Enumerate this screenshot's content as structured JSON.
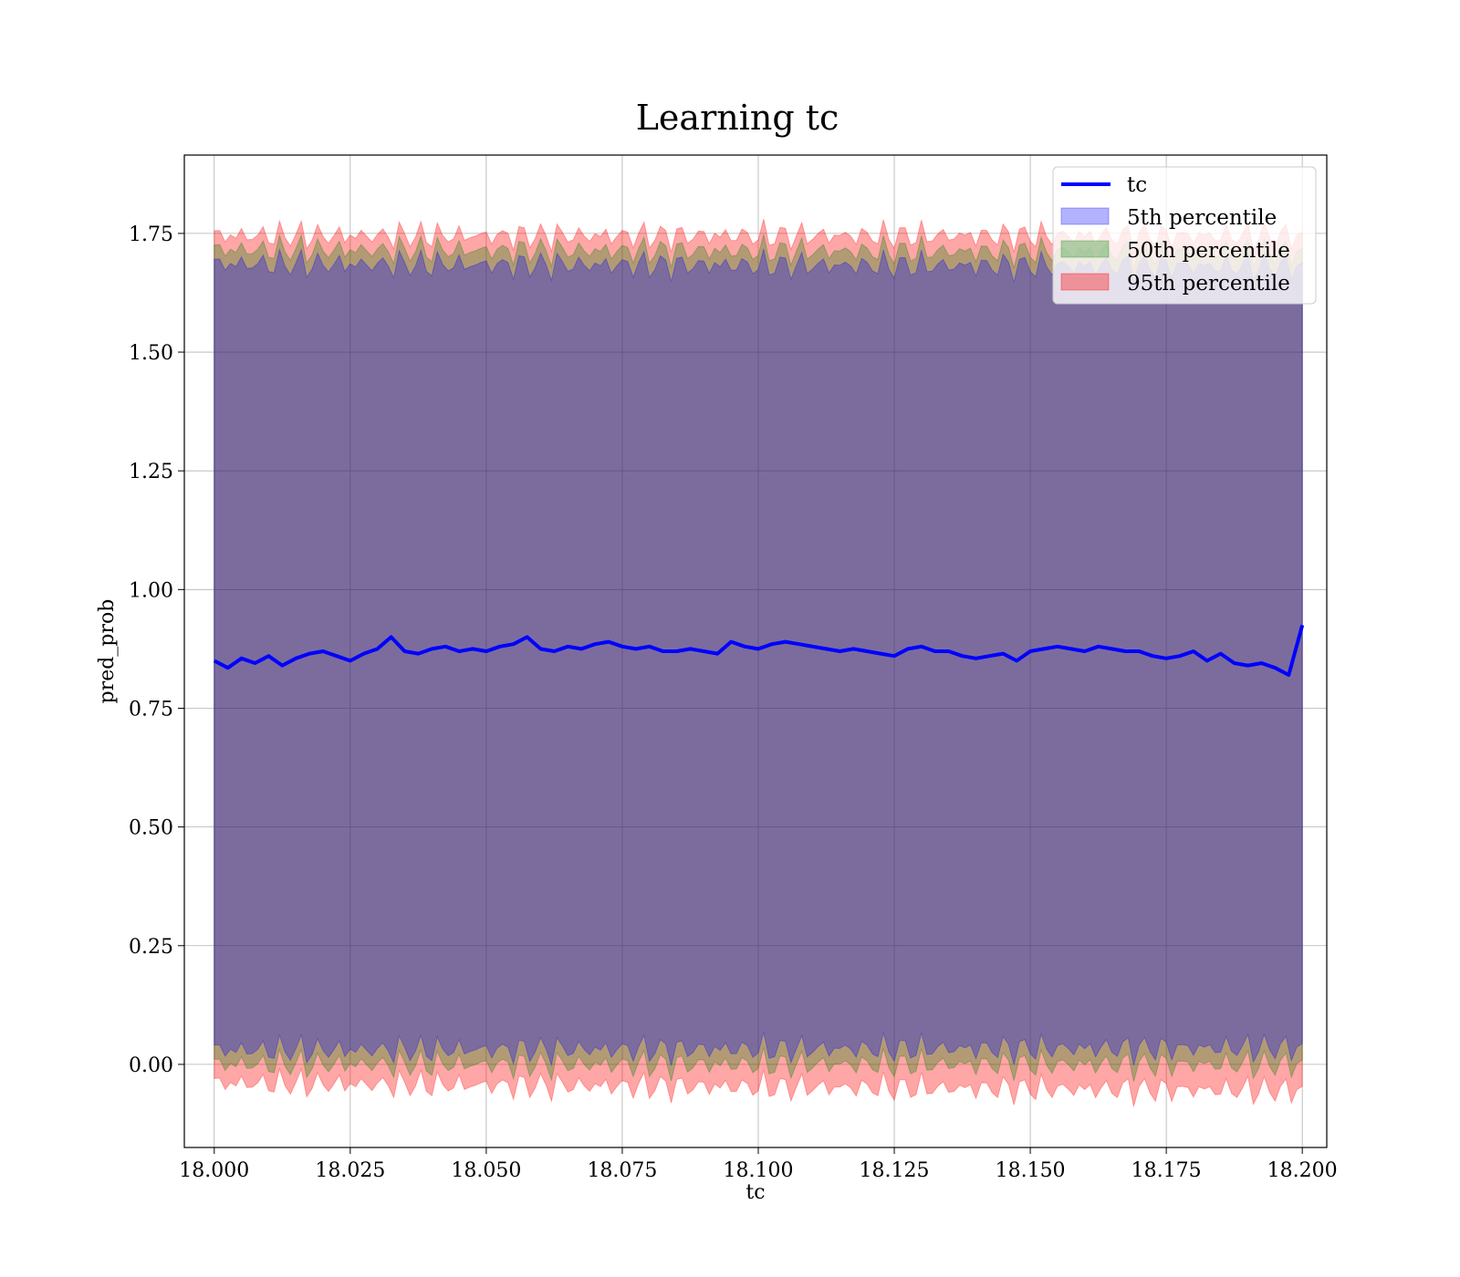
{
  "chart_data": {
    "type": "area",
    "title": "Learning tc",
    "xlabel": "tc",
    "ylabel": "pred_prob",
    "xlim": [
      17.9945,
      18.2045
    ],
    "ylim": [
      -0.175,
      1.915
    ],
    "x_ticks": [
      "18.000",
      "18.025",
      "18.050",
      "18.075",
      "18.100",
      "18.125",
      "18.150",
      "18.175",
      "18.200"
    ],
    "y_ticks": [
      "0.00",
      "0.25",
      "0.50",
      "0.75",
      "1.00",
      "1.25",
      "1.50",
      "1.75"
    ],
    "grid": true,
    "legend_position": "top-right",
    "x_range": [
      18.0,
      18.2
    ],
    "series": [
      {
        "name": "tc",
        "kind": "line",
        "color": "#0000ff",
        "x": [
          18.0,
          18.0025,
          18.005,
          18.0075,
          18.01,
          18.0125,
          18.015,
          18.0175,
          18.02,
          18.0225,
          18.025,
          18.0275,
          18.03,
          18.0325,
          18.035,
          18.0375,
          18.04,
          18.0425,
          18.045,
          18.0475,
          18.05,
          18.0525,
          18.055,
          18.0575,
          18.06,
          18.0625,
          18.065,
          18.0675,
          18.07,
          18.0725,
          18.075,
          18.0775,
          18.08,
          18.0825,
          18.085,
          18.0875,
          18.09,
          18.0925,
          18.095,
          18.0975,
          18.1,
          18.1025,
          18.105,
          18.1075,
          18.11,
          18.1125,
          18.115,
          18.1175,
          18.12,
          18.1225,
          18.125,
          18.1275,
          18.13,
          18.1325,
          18.135,
          18.1375,
          18.14,
          18.1425,
          18.145,
          18.1475,
          18.15,
          18.1525,
          18.155,
          18.1575,
          18.16,
          18.1625,
          18.165,
          18.1675,
          18.17,
          18.1725,
          18.175,
          18.1775,
          18.18,
          18.1825,
          18.185,
          18.1875,
          18.19,
          18.1925,
          18.195,
          18.1975,
          18.2
        ],
        "values": [
          0.85,
          0.835,
          0.855,
          0.845,
          0.86,
          0.84,
          0.855,
          0.865,
          0.87,
          0.86,
          0.85,
          0.865,
          0.875,
          0.9,
          0.87,
          0.865,
          0.875,
          0.88,
          0.87,
          0.875,
          0.87,
          0.88,
          0.885,
          0.9,
          0.875,
          0.87,
          0.88,
          0.875,
          0.885,
          0.89,
          0.88,
          0.875,
          0.88,
          0.87,
          0.87,
          0.875,
          0.87,
          0.865,
          0.89,
          0.88,
          0.875,
          0.885,
          0.89,
          0.885,
          0.88,
          0.875,
          0.87,
          0.875,
          0.87,
          0.865,
          0.86,
          0.875,
          0.88,
          0.87,
          0.87,
          0.86,
          0.855,
          0.86,
          0.865,
          0.85,
          0.87,
          0.875,
          0.88,
          0.875,
          0.87,
          0.88,
          0.875,
          0.87,
          0.87,
          0.86,
          0.855,
          0.86,
          0.87,
          0.85,
          0.865,
          0.845,
          0.84,
          0.845,
          0.835,
          0.82,
          0.925
        ]
      },
      {
        "name": "5th percentile",
        "kind": "band",
        "color": "#0000ff",
        "lower": [
          0.03,
          0.035
        ],
        "upper": [
          1.685,
          1.68
        ]
      },
      {
        "name": "50th percentile",
        "kind": "band",
        "color": "#008000",
        "lower": [
          0.0,
          0.0
        ],
        "upper": [
          1.715,
          1.71
        ]
      },
      {
        "name": "95th percentile",
        "kind": "band",
        "color": "#ff0000",
        "lower": [
          -0.04,
          -0.055
        ],
        "upper": [
          1.745,
          1.745
        ]
      }
    ]
  }
}
